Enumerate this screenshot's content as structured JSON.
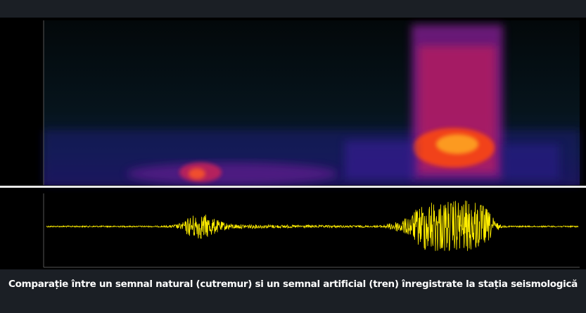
{
  "caption": "Comparație între un semnal natural (cutremur) si un semnal artificial (tren) înregistrate la stația seismologică"
}
